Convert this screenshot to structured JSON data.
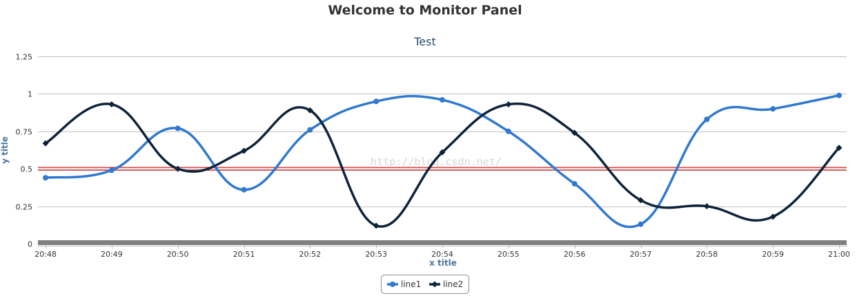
{
  "page": {
    "title": "Welcome to Monitor Panel"
  },
  "watermark": "http://blog.csdn.net/",
  "chart_data": {
    "type": "line",
    "title": "Test",
    "xlabel": "x title",
    "ylabel": "y title",
    "categories": [
      "20:48",
      "20:49",
      "20:50",
      "20:51",
      "20:52",
      "20:53",
      "20:54",
      "20:55",
      "20:56",
      "20:57",
      "20:58",
      "20:59",
      "21:00"
    ],
    "y_ticks": [
      "0",
      "0.25",
      "0.5",
      "0.75",
      "1",
      "1.25"
    ],
    "ylim": [
      0,
      1.25
    ],
    "grid": true,
    "legend_position": "bottom-center",
    "series": [
      {
        "name": "line1",
        "color": "#3079d0",
        "marker": "circle",
        "values": [
          0.44,
          0.49,
          0.77,
          0.36,
          0.76,
          0.95,
          0.96,
          0.75,
          0.4,
          0.13,
          0.83,
          0.9,
          0.99
        ]
      },
      {
        "name": "line2",
        "color": "#0d233a",
        "marker": "diamond",
        "values": [
          0.67,
          0.93,
          0.5,
          0.62,
          0.89,
          0.12,
          0.61,
          0.93,
          0.74,
          0.29,
          0.25,
          0.18,
          0.64
        ]
      }
    ],
    "plot_lines": [
      {
        "value": 0.5,
        "color": "#cc0000"
      }
    ]
  }
}
